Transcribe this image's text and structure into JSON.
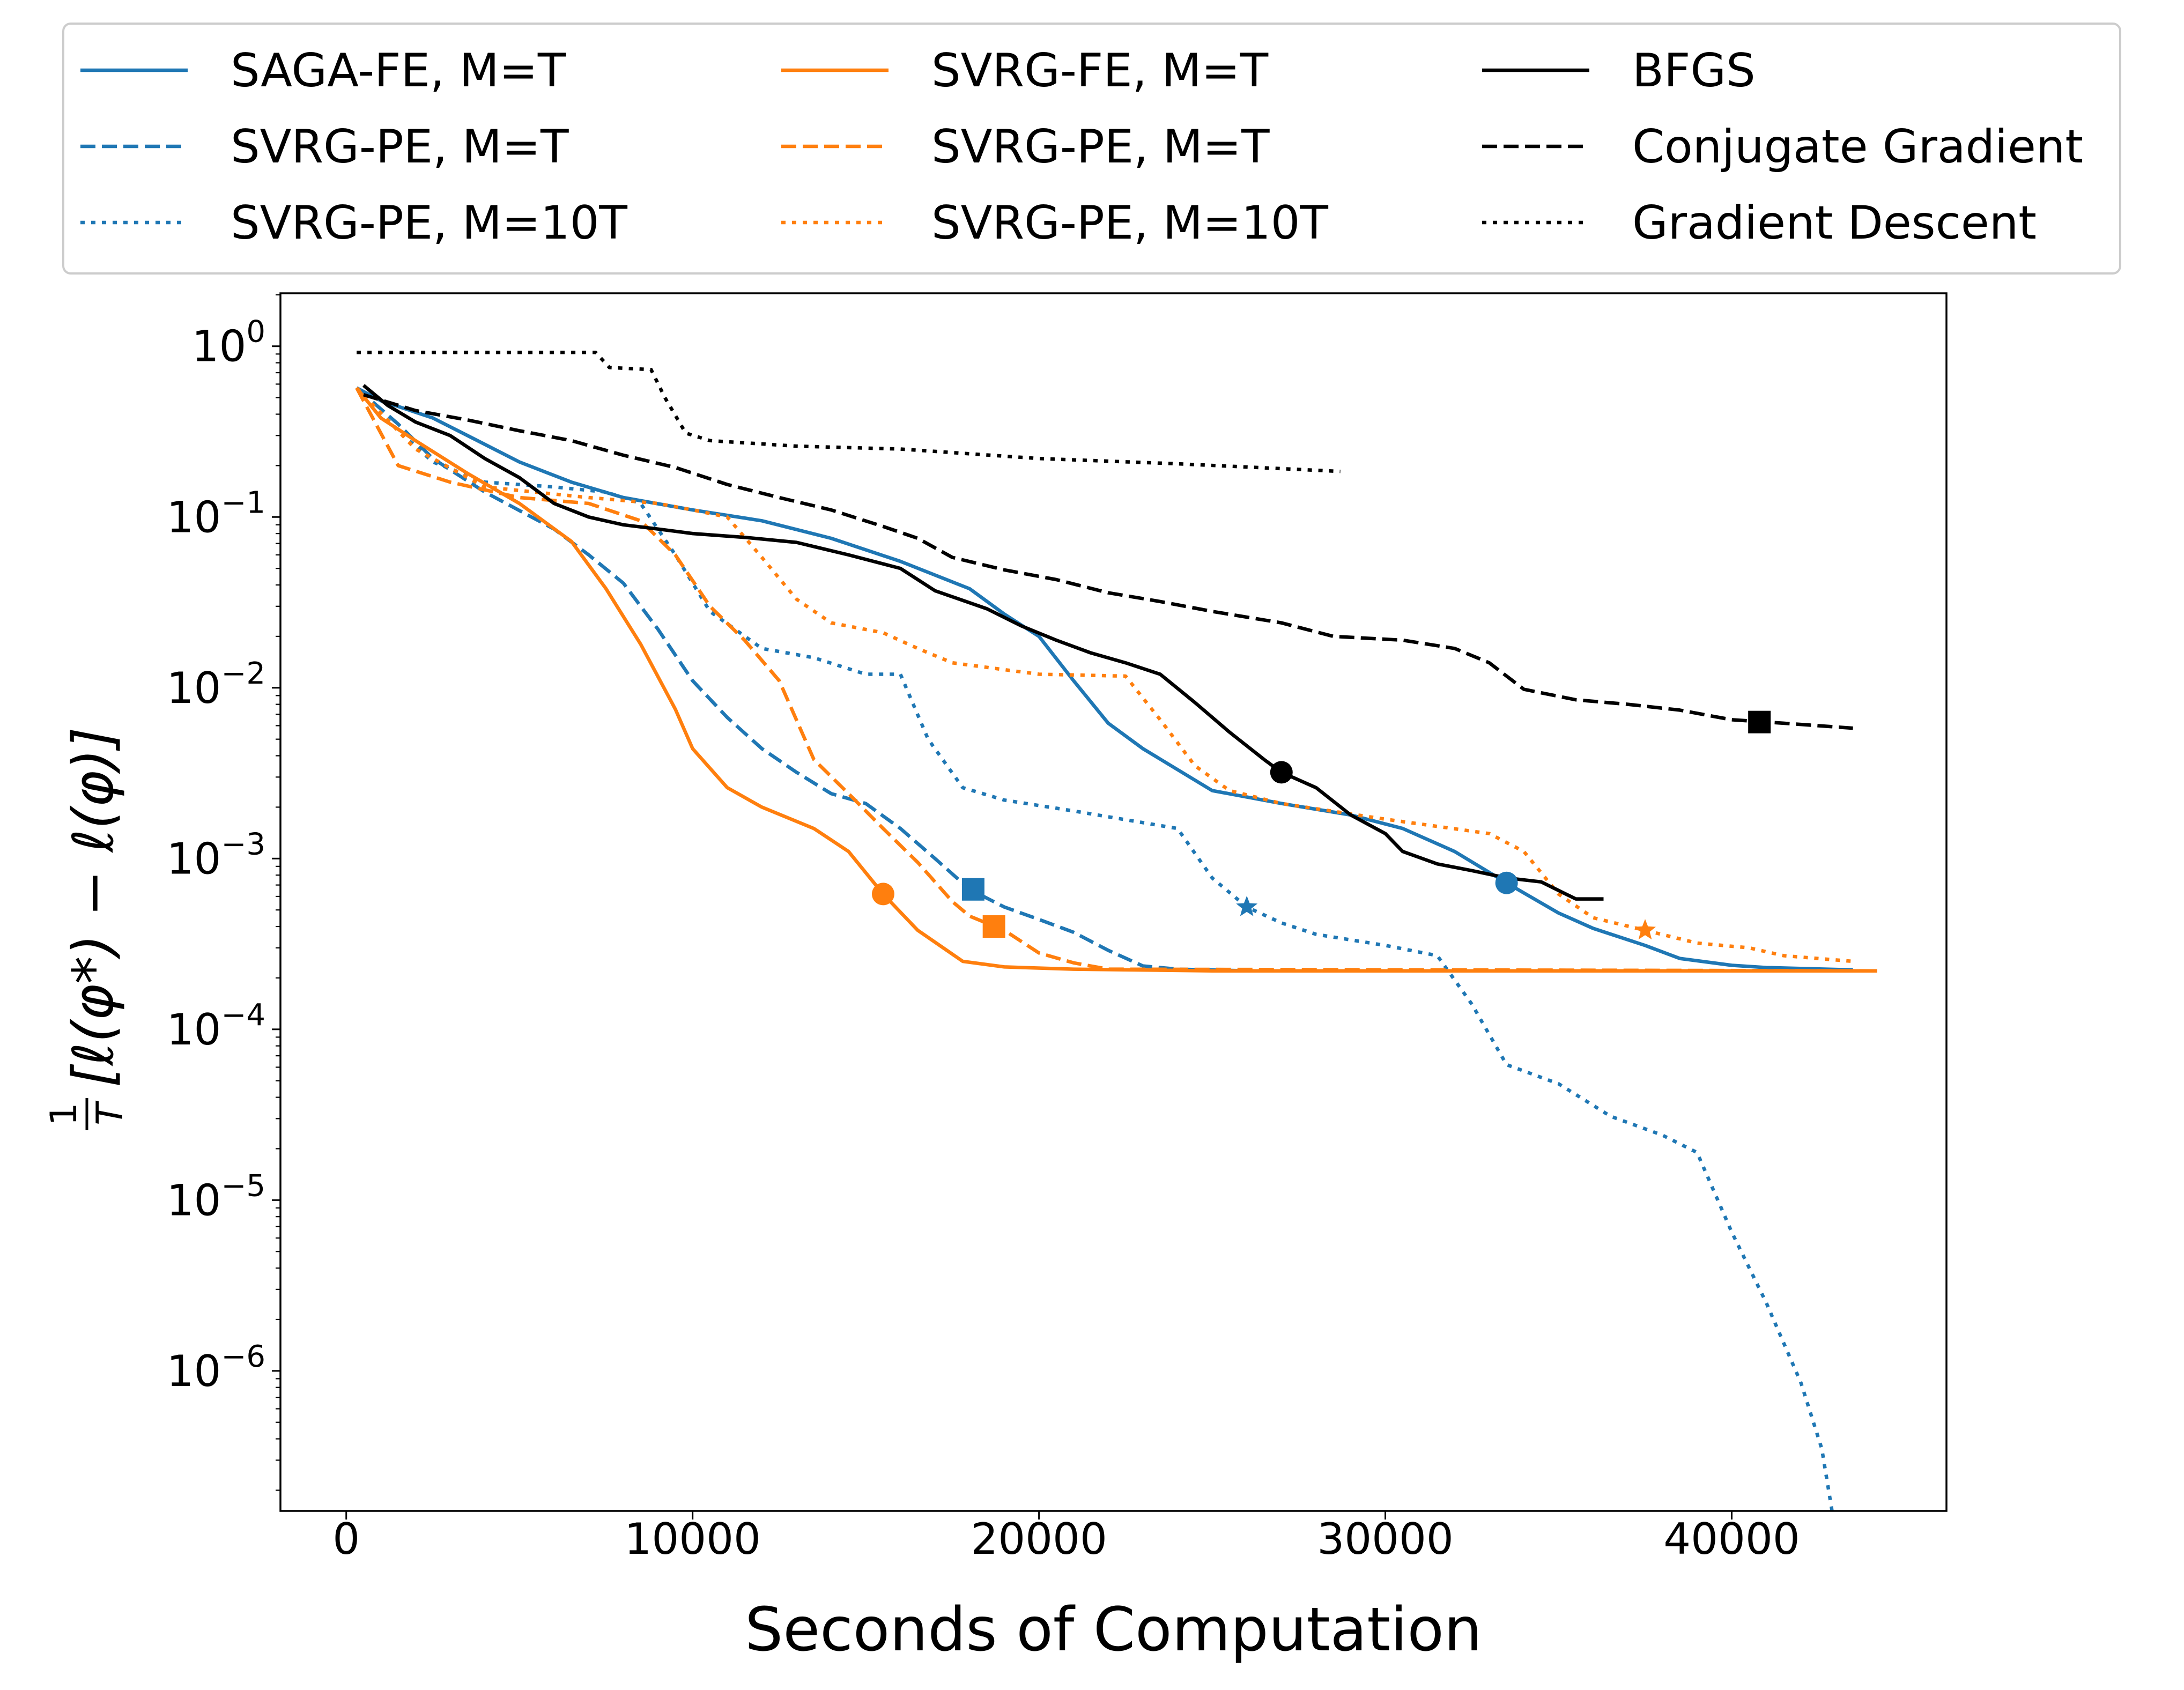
{
  "chart_data": {
    "type": "line",
    "title": "",
    "xlabel": "Seconds of Computation",
    "ylabel_frac_num": "1",
    "ylabel_frac_den": "T",
    "ylabel_expr": "[ℓ(φ*) − ℓ(φ)]",
    "xlim": [
      -1900,
      46200
    ],
    "ylim_log10": [
      -6.82,
      0.31
    ],
    "yscale": "log",
    "grid": false,
    "legend_position": "top, above plot, 3 columns",
    "xticks": [
      0,
      10000,
      20000,
      30000,
      40000
    ],
    "xtick_labels": [
      "0",
      "10000",
      "20000",
      "30000",
      "40000"
    ],
    "yticks_log10": [
      0,
      -1,
      -2,
      -3,
      -4,
      -5,
      -6
    ],
    "ytick_base": "10",
    "ytick_exponents": [
      "0",
      "−1",
      "−2",
      "−3",
      "−4",
      "−5",
      "−6"
    ],
    "series": [
      {
        "name": "SAGA-FE, M=T",
        "color": "#1f77b4",
        "dash": "solid",
        "points": [
          [
            300,
            0.57
          ],
          [
            1000,
            0.48
          ],
          [
            2500,
            0.38
          ],
          [
            3500,
            0.3
          ],
          [
            5000,
            0.21
          ],
          [
            6500,
            0.16
          ],
          [
            8000,
            0.13
          ],
          [
            10000,
            0.11
          ],
          [
            12000,
            0.095
          ],
          [
            14000,
            0.075
          ],
          [
            16000,
            0.055
          ],
          [
            18000,
            0.038
          ],
          [
            19000,
            0.027
          ],
          [
            20000,
            0.02
          ],
          [
            21000,
            0.011
          ],
          [
            22000,
            0.0062
          ],
          [
            23000,
            0.0044
          ],
          [
            25000,
            0.0025
          ],
          [
            27000,
            0.0021
          ],
          [
            29000,
            0.0018
          ],
          [
            30500,
            0.0015
          ],
          [
            32000,
            0.0011
          ],
          [
            33500,
            0.00072
          ],
          [
            35000,
            0.00048
          ],
          [
            36000,
            0.00039
          ],
          [
            37500,
            0.00031
          ],
          [
            38500,
            0.00026
          ],
          [
            40000,
            0.000237
          ],
          [
            41000,
            0.00023
          ],
          [
            43500,
            0.000223
          ]
        ],
        "marker": {
          "shape": "circle",
          "x": 33500,
          "y": 0.00072
        }
      },
      {
        "name": "SVRG-PE, M=T",
        "color": "#1f77b4",
        "dash": "dashed",
        "points": [
          [
            300,
            0.57
          ],
          [
            1500,
            0.35
          ],
          [
            2500,
            0.22
          ],
          [
            4000,
            0.14
          ],
          [
            6000,
            0.085
          ],
          [
            7000,
            0.06
          ],
          [
            8000,
            0.041
          ],
          [
            9000,
            0.022
          ],
          [
            10000,
            0.011
          ],
          [
            11000,
            0.0067
          ],
          [
            12000,
            0.0044
          ],
          [
            13000,
            0.0032
          ],
          [
            14000,
            0.0024
          ],
          [
            15000,
            0.0021
          ],
          [
            16000,
            0.0015
          ],
          [
            17000,
            0.001
          ],
          [
            18000,
            0.00066
          ],
          [
            19000,
            0.00052
          ],
          [
            20000,
            0.00044
          ],
          [
            21000,
            0.00037
          ],
          [
            22000,
            0.00029
          ],
          [
            23000,
            0.000235
          ],
          [
            24000,
            0.000225
          ],
          [
            26000,
            0.00022
          ],
          [
            44000,
            0.00022
          ]
        ],
        "marker": {
          "shape": "square",
          "x": 18100,
          "y": 0.00066
        }
      },
      {
        "name": "SVRG-PE, M=10T",
        "color": "#1f77b4",
        "dash": "dotted",
        "points": [
          [
            300,
            0.57
          ],
          [
            1500,
            0.32
          ],
          [
            2500,
            0.21
          ],
          [
            4000,
            0.16
          ],
          [
            6000,
            0.15
          ],
          [
            7500,
            0.14
          ],
          [
            8500,
            0.12
          ],
          [
            9500,
            0.06
          ],
          [
            10500,
            0.028
          ],
          [
            12000,
            0.017
          ],
          [
            13500,
            0.015
          ],
          [
            15000,
            0.012
          ],
          [
            16000,
            0.012
          ],
          [
            16800,
            0.005
          ],
          [
            17800,
            0.0026
          ],
          [
            19000,
            0.0022
          ],
          [
            21000,
            0.0019
          ],
          [
            24000,
            0.0015
          ],
          [
            25000,
            0.00077
          ],
          [
            26000,
            0.00052
          ],
          [
            27000,
            0.00042
          ],
          [
            28000,
            0.00036
          ],
          [
            30000,
            0.00031
          ],
          [
            31500,
            0.00027
          ],
          [
            32500,
            0.00014
          ],
          [
            33500,
            6.21e-05
          ],
          [
            35000,
            4.8e-05
          ],
          [
            36500,
            3.1e-05
          ],
          [
            38000,
            2.4e-05
          ],
          [
            39000,
            1.9e-05
          ],
          [
            40000,
            6.5e-06
          ],
          [
            41000,
            2.5e-06
          ],
          [
            42000,
            8.5e-07
          ],
          [
            42600,
            3.5e-07
          ],
          [
            42900,
            1.5e-07
          ]
        ],
        "marker": {
          "shape": "star",
          "x": 26000,
          "y": 0.00052
        }
      },
      {
        "name": "SVRG-FE, M=T",
        "color": "#ff7f0e",
        "dash": "solid",
        "points": [
          [
            300,
            0.57
          ],
          [
            1000,
            0.38
          ],
          [
            2000,
            0.28
          ],
          [
            3500,
            0.18
          ],
          [
            5000,
            0.12
          ],
          [
            6500,
            0.072
          ],
          [
            7500,
            0.038
          ],
          [
            8500,
            0.018
          ],
          [
            9500,
            0.0075
          ],
          [
            10000,
            0.0044
          ],
          [
            11000,
            0.0026
          ],
          [
            12000,
            0.002
          ],
          [
            13500,
            0.0015
          ],
          [
            14500,
            0.0011
          ],
          [
            15500,
            0.00062
          ],
          [
            16500,
            0.00038
          ],
          [
            17800,
            0.00025
          ],
          [
            19000,
            0.000232
          ],
          [
            21000,
            0.000225
          ],
          [
            25000,
            0.00022
          ],
          [
            44200,
            0.00022
          ]
        ],
        "marker": {
          "shape": "circle",
          "x": 15500,
          "y": 0.00062
        }
      },
      {
        "name": "SVRG-PE, M=T",
        "color": "#ff7f0e",
        "dash": "dashed",
        "points": [
          [
            300,
            0.57
          ],
          [
            1500,
            0.2
          ],
          [
            3000,
            0.16
          ],
          [
            5000,
            0.13
          ],
          [
            7000,
            0.12
          ],
          [
            8500,
            0.095
          ],
          [
            9500,
            0.06
          ],
          [
            10500,
            0.03
          ],
          [
            11500,
            0.019
          ],
          [
            12500,
            0.011
          ],
          [
            13500,
            0.0038
          ],
          [
            14500,
            0.0024
          ],
          [
            15500,
            0.0015
          ],
          [
            16500,
            0.00095
          ],
          [
            17500,
            0.00056
          ],
          [
            18000,
            0.00046
          ],
          [
            19000,
            0.00038
          ],
          [
            20000,
            0.00028
          ],
          [
            21000,
            0.000245
          ],
          [
            22000,
            0.000225
          ],
          [
            44000,
            0.00022
          ]
        ],
        "marker": {
          "shape": "square",
          "x": 18700,
          "y": 0.0004
        }
      },
      {
        "name": "SVRG-PE, M=10T",
        "color": "#ff7f0e",
        "dash": "dotted",
        "points": [
          [
            300,
            0.57
          ],
          [
            2000,
            0.25
          ],
          [
            4000,
            0.15
          ],
          [
            7000,
            0.13
          ],
          [
            9000,
            0.12
          ],
          [
            10000,
            0.11
          ],
          [
            11000,
            0.1
          ],
          [
            12000,
            0.058
          ],
          [
            13000,
            0.033
          ],
          [
            14000,
            0.024
          ],
          [
            15500,
            0.021
          ],
          [
            16500,
            0.017
          ],
          [
            17500,
            0.014
          ],
          [
            20000,
            0.012
          ],
          [
            22500,
            0.0117
          ],
          [
            23500,
            0.0065
          ],
          [
            24500,
            0.0035
          ],
          [
            25500,
            0.0025
          ],
          [
            27000,
            0.0021
          ],
          [
            30000,
            0.0017
          ],
          [
            33000,
            0.0014
          ],
          [
            34000,
            0.0011
          ],
          [
            35000,
            0.00062
          ],
          [
            36000,
            0.00045
          ],
          [
            37500,
            0.00038
          ],
          [
            39000,
            0.00032
          ],
          [
            40500,
            0.0003
          ],
          [
            41500,
            0.00027
          ],
          [
            43500,
            0.00025
          ]
        ],
        "marker": {
          "shape": "star",
          "x": 37500,
          "y": 0.00038
        }
      },
      {
        "name": "BFGS",
        "color": "#000000",
        "dash": "solid",
        "points": [
          [
            500,
            0.59
          ],
          [
            1200,
            0.45
          ],
          [
            2000,
            0.36
          ],
          [
            3000,
            0.3
          ],
          [
            4000,
            0.22
          ],
          [
            5000,
            0.17
          ],
          [
            6000,
            0.12
          ],
          [
            7000,
            0.1
          ],
          [
            8000,
            0.09
          ],
          [
            9000,
            0.085
          ],
          [
            10000,
            0.08
          ],
          [
            11500,
            0.076
          ],
          [
            13000,
            0.071
          ],
          [
            14500,
            0.06
          ],
          [
            16000,
            0.05
          ],
          [
            17000,
            0.037
          ],
          [
            18500,
            0.029
          ],
          [
            19500,
            0.023
          ],
          [
            20500,
            0.019
          ],
          [
            21500,
            0.016
          ],
          [
            22500,
            0.014
          ],
          [
            23500,
            0.012
          ],
          [
            24500,
            0.0082
          ],
          [
            25500,
            0.0055
          ],
          [
            26500,
            0.0038
          ],
          [
            27000,
            0.0032
          ],
          [
            28000,
            0.0026
          ],
          [
            29000,
            0.0018
          ],
          [
            30000,
            0.0014
          ],
          [
            30500,
            0.0011
          ],
          [
            31500,
            0.00093
          ],
          [
            32500,
            0.00085
          ],
          [
            33500,
            0.00077
          ],
          [
            34500,
            0.00073
          ],
          [
            35500,
            0.00058
          ],
          [
            36300,
            0.00058
          ]
        ],
        "marker": {
          "shape": "circle",
          "x": 27000,
          "y": 0.0032
        }
      },
      {
        "name": "Conjugate Gradient",
        "color": "#000000",
        "dash": "dashed",
        "points": [
          [
            500,
            0.52
          ],
          [
            2000,
            0.42
          ],
          [
            3500,
            0.37
          ],
          [
            5000,
            0.32
          ],
          [
            6500,
            0.28
          ],
          [
            8000,
            0.23
          ],
          [
            9500,
            0.195
          ],
          [
            11000,
            0.155
          ],
          [
            12500,
            0.13
          ],
          [
            14000,
            0.11
          ],
          [
            15500,
            0.088
          ],
          [
            16500,
            0.075
          ],
          [
            17500,
            0.058
          ],
          [
            19000,
            0.049
          ],
          [
            20500,
            0.043
          ],
          [
            22000,
            0.036
          ],
          [
            23500,
            0.032
          ],
          [
            25000,
            0.028
          ],
          [
            27000,
            0.024
          ],
          [
            28500,
            0.02
          ],
          [
            30500,
            0.019
          ],
          [
            32000,
            0.017
          ],
          [
            33000,
            0.014
          ],
          [
            34000,
            0.0098
          ],
          [
            35500,
            0.0085
          ],
          [
            37000,
            0.008
          ],
          [
            38500,
            0.0074
          ],
          [
            40000,
            0.0065
          ],
          [
            41500,
            0.0062
          ],
          [
            43500,
            0.0058
          ]
        ],
        "marker": {
          "shape": "square",
          "x": 40800,
          "y": 0.0063
        }
      },
      {
        "name": "Gradient Descent",
        "color": "#000000",
        "dash": "dotted",
        "points": [
          [
            300,
            0.92
          ],
          [
            3000,
            0.92
          ],
          [
            6000,
            0.92
          ],
          [
            7200,
            0.92
          ],
          [
            7600,
            0.75
          ],
          [
            8800,
            0.73
          ],
          [
            9200,
            0.5
          ],
          [
            9800,
            0.31
          ],
          [
            10500,
            0.28
          ],
          [
            13000,
            0.26
          ],
          [
            16000,
            0.25
          ],
          [
            20000,
            0.22
          ],
          [
            24000,
            0.205
          ],
          [
            28700,
            0.185
          ]
        ]
      }
    ]
  }
}
